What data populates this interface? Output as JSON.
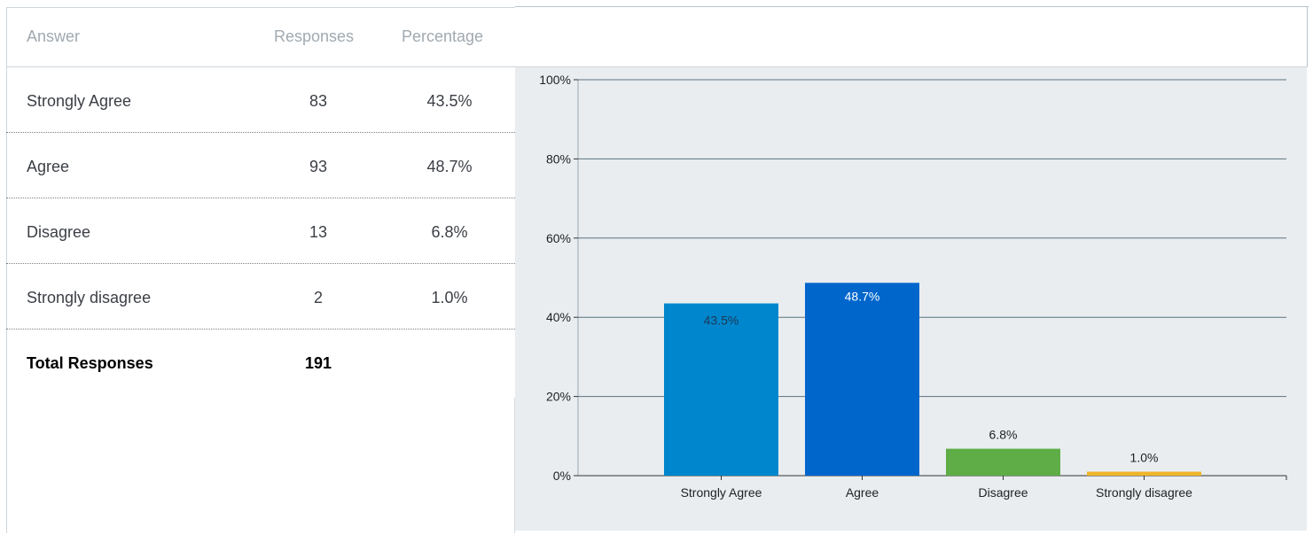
{
  "table": {
    "headers": {
      "answer": "Answer",
      "responses": "Responses",
      "percentage": "Percentage"
    },
    "rows": [
      {
        "answer": "Strongly Agree",
        "responses": "83",
        "percentage": "43.5%"
      },
      {
        "answer": "Agree",
        "responses": "93",
        "percentage": "48.7%"
      },
      {
        "answer": "Disagree",
        "responses": "13",
        "percentage": "6.8%"
      },
      {
        "answer": "Strongly disagree",
        "responses": "2",
        "percentage": "1.0%"
      }
    ],
    "total": {
      "label": "Total Responses",
      "value": "191"
    }
  },
  "colors": {
    "strongly_agree": "#0086cc",
    "agree": "#0066cc",
    "disagree": "#5ead46",
    "strongly_disagree": "#f0b429",
    "chart_bg": "#e9edf0",
    "gridline": "#5e7381"
  },
  "chart_data": {
    "type": "bar",
    "categories": [
      "Strongly Agree",
      "Agree",
      "Disagree",
      "Strongly disagree"
    ],
    "values": [
      43.5,
      48.7,
      6.8,
      1.0
    ],
    "data_labels": [
      "43.5%",
      "48.7%",
      "6.8%",
      "1.0%"
    ],
    "title": "",
    "xlabel": "",
    "ylabel": "",
    "ylim": [
      0,
      100
    ],
    "yticks": [
      "0%",
      "20%",
      "40%",
      "60%",
      "80%",
      "100%"
    ],
    "grid": true,
    "legend": "none"
  }
}
